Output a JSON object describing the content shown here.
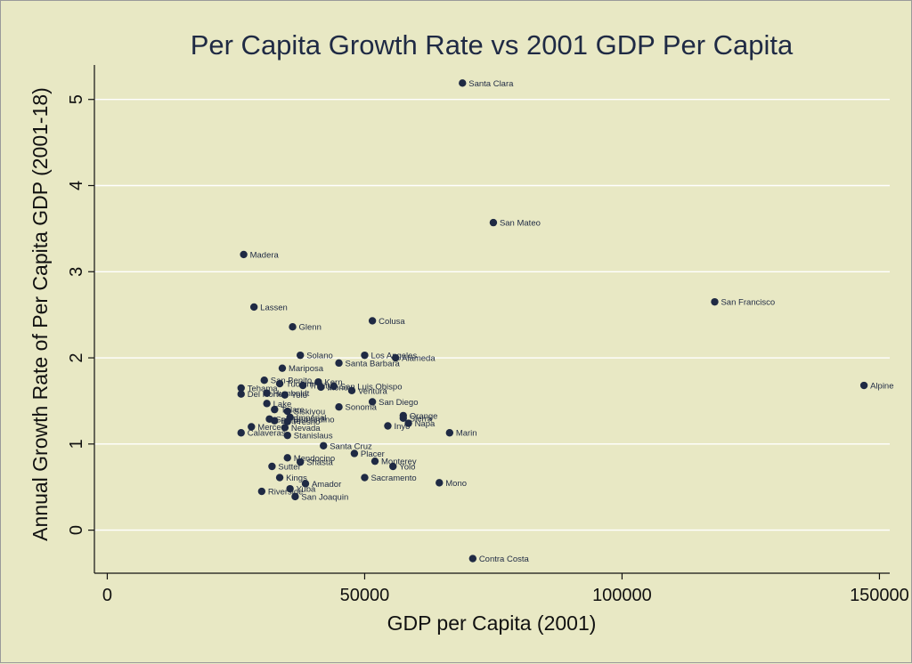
{
  "chart_data": {
    "type": "scatter",
    "title": "Per Capita Growth Rate vs 2001 GDP Per Capita",
    "xlabel": "GDP per Capita (2001)",
    "ylabel": "Annual Growth Rate of Per Capita GDP (2001-18)",
    "xlim": [
      -2500,
      152000
    ],
    "ylim": [
      -0.5,
      5.4
    ],
    "xticks": [
      0,
      50000,
      100000,
      150000
    ],
    "yticks": [
      0,
      1,
      2,
      3,
      4,
      5
    ],
    "grid": true,
    "marker_color": "#1f2a44",
    "background_color": "#e8e8c4",
    "points": [
      {
        "label": "Santa Clara",
        "x": 69000,
        "y": 5.19
      },
      {
        "label": "San Mateo",
        "x": 75000,
        "y": 3.57
      },
      {
        "label": "Madera",
        "x": 26500,
        "y": 3.2
      },
      {
        "label": "San Francisco",
        "x": 118000,
        "y": 2.65
      },
      {
        "label": "Lassen",
        "x": 28500,
        "y": 2.59
      },
      {
        "label": "Colusa",
        "x": 51500,
        "y": 2.43
      },
      {
        "label": "Glenn",
        "x": 36000,
        "y": 2.36
      },
      {
        "label": "Los Angeles",
        "x": 50000,
        "y": 2.03
      },
      {
        "label": "Solano",
        "x": 37500,
        "y": 2.03
      },
      {
        "label": "Alameda",
        "x": 56000,
        "y": 2.0
      },
      {
        "label": "Santa Barbara",
        "x": 45000,
        "y": 1.94
      },
      {
        "label": "Mariposa",
        "x": 34000,
        "y": 1.88
      },
      {
        "label": "Kern",
        "x": 41000,
        "y": 1.72
      },
      {
        "label": "San Benito",
        "x": 30500,
        "y": 1.74
      },
      {
        "label": "Tuolumne",
        "x": 33500,
        "y": 1.7
      },
      {
        "label": "San Luis Obispo",
        "x": 44000,
        "y": 1.67
      },
      {
        "label": "Alpine",
        "x": 147000,
        "y": 1.68
      },
      {
        "label": "Tehama",
        "x": 26000,
        "y": 1.65
      },
      {
        "label": "Trinity",
        "x": 38000,
        "y": 1.68
      },
      {
        "label": "Mono",
        "x": 41500,
        "y": 1.66
      },
      {
        "label": "Del Norte",
        "x": 26000,
        "y": 1.58
      },
      {
        "label": "Ventura",
        "x": 47500,
        "y": 1.62
      },
      {
        "label": "Humboldt",
        "x": 31000,
        "y": 1.59
      },
      {
        "label": "Yolo",
        "x": 34500,
        "y": 1.57
      },
      {
        "label": "San Diego",
        "x": 51500,
        "y": 1.49
      },
      {
        "label": "Lake",
        "x": 31000,
        "y": 1.47
      },
      {
        "label": "Tulare",
        "x": 32500,
        "y": 1.4
      },
      {
        "label": "Sonoma",
        "x": 45000,
        "y": 1.43
      },
      {
        "label": "Siskiyou",
        "x": 35000,
        "y": 1.38
      },
      {
        "label": "Imperial",
        "x": 35500,
        "y": 1.31
      },
      {
        "label": "Orange",
        "x": 57500,
        "y": 1.33
      },
      {
        "label": "Sierra",
        "x": 57500,
        "y": 1.3
      },
      {
        "label": "San Bernardino",
        "x": 31500,
        "y": 1.29
      },
      {
        "label": "Butte",
        "x": 32500,
        "y": 1.27
      },
      {
        "label": "Fresno",
        "x": 35000,
        "y": 1.26
      },
      {
        "label": "Napa",
        "x": 58500,
        "y": 1.24
      },
      {
        "label": "Merced",
        "x": 28000,
        "y": 1.2
      },
      {
        "label": "Nevada",
        "x": 34500,
        "y": 1.19
      },
      {
        "label": "Inyo",
        "x": 54500,
        "y": 1.21
      },
      {
        "label": "Marin",
        "x": 66500,
        "y": 1.13
      },
      {
        "label": "Stanislaus",
        "x": 35000,
        "y": 1.1
      },
      {
        "label": "Calaveras",
        "x": 26000,
        "y": 1.13
      },
      {
        "label": "Santa Cruz",
        "x": 42000,
        "y": 0.98
      },
      {
        "label": "Mendocino",
        "x": 35000,
        "y": 0.84
      },
      {
        "label": "Placer",
        "x": 48000,
        "y": 0.89
      },
      {
        "label": "Shasta",
        "x": 37500,
        "y": 0.79
      },
      {
        "label": "Sutter",
        "x": 32000,
        "y": 0.74
      },
      {
        "label": "Monterey",
        "x": 52000,
        "y": 0.8
      },
      {
        "label": "Yolo",
        "x": 55500,
        "y": 0.74
      },
      {
        "label": "Kings",
        "x": 33500,
        "y": 0.61
      },
      {
        "label": "Sacramento",
        "x": 50000,
        "y": 0.61
      },
      {
        "label": "Mono",
        "x": 64500,
        "y": 0.55
      },
      {
        "label": "Amador",
        "x": 38500,
        "y": 0.54
      },
      {
        "label": "Yuba",
        "x": 35500,
        "y": 0.48
      },
      {
        "label": "Riverside",
        "x": 30000,
        "y": 0.45
      },
      {
        "label": "San Joaquin",
        "x": 36500,
        "y": 0.39
      },
      {
        "label": "Contra Costa",
        "x": 71000,
        "y": -0.33
      }
    ]
  }
}
